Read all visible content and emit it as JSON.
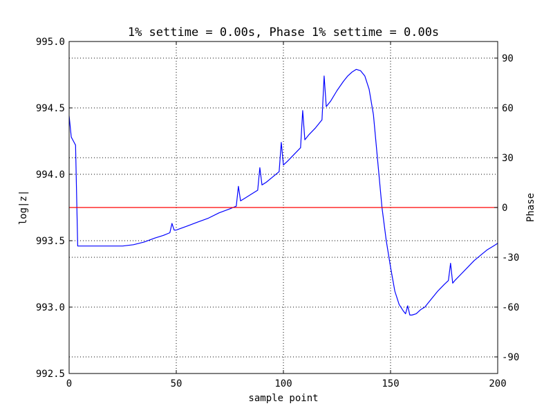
{
  "chart_data": {
    "type": "line",
    "title": "1% settime = 0.00s, Phase 1% settime = 0.00s",
    "xlabel": "sample point",
    "ylabel_left": "log|z|",
    "ylabel_right": "Phase",
    "xlim": [
      0,
      200
    ],
    "ylim_left": [
      992.5,
      995.0
    ],
    "ylim_right": [
      -100,
      100
    ],
    "x_ticks": [
      0,
      50,
      100,
      150,
      200
    ],
    "x_tick_labels": [
      "0",
      "50",
      "100",
      "150",
      "200"
    ],
    "left_ticks": [
      992.5,
      993.0,
      993.5,
      994.0,
      994.5,
      995.0
    ],
    "left_tick_labels": [
      "992.5",
      "993.0",
      "993.5",
      "994.0",
      "994.5",
      "995.0"
    ],
    "right_ticks": [
      -90,
      -60,
      -30,
      0,
      30,
      60,
      90
    ],
    "right_tick_labels": [
      "-90",
      "-60",
      "-30",
      "0",
      "30",
      "60",
      "90"
    ],
    "grid": true,
    "colors": {
      "magnitude": "#0000ff",
      "phase": "#ff0000",
      "grid": "#000000",
      "axes": "#000000"
    },
    "series": [
      {
        "axis": "left",
        "x": [
          0,
          1,
          2,
          3,
          4,
          6,
          10,
          15,
          20,
          25,
          30,
          35,
          40,
          44,
          47,
          48,
          49,
          50,
          55,
          60,
          65,
          70,
          75,
          78,
          79,
          80,
          82,
          85,
          88,
          89,
          90,
          92,
          95,
          98,
          99,
          100,
          102,
          105,
          108,
          109,
          110,
          112,
          115,
          118,
          119,
          120,
          122,
          125,
          128,
          130,
          132,
          134,
          136,
          138,
          140,
          142,
          144,
          146,
          148,
          150,
          152,
          154,
          156,
          157,
          158,
          159,
          160,
          162,
          164,
          166,
          168,
          170,
          172,
          175,
          177,
          178,
          179,
          180,
          183,
          186,
          189,
          192,
          195,
          198,
          200
        ],
        "values": [
          994.44,
          994.28,
          994.25,
          994.22,
          993.46,
          993.46,
          993.46,
          993.46,
          993.46,
          993.46,
          993.47,
          993.49,
          993.52,
          993.54,
          993.56,
          993.63,
          993.58,
          993.58,
          993.61,
          993.64,
          993.67,
          993.71,
          993.74,
          993.76,
          993.91,
          993.8,
          993.82,
          993.85,
          993.88,
          994.05,
          993.92,
          993.94,
          993.98,
          994.02,
          994.24,
          994.07,
          994.1,
          994.15,
          994.2,
          994.48,
          994.26,
          994.3,
          994.35,
          994.41,
          994.74,
          994.51,
          994.55,
          994.63,
          994.7,
          994.74,
          994.77,
          994.79,
          994.78,
          994.74,
          994.64,
          994.45,
          994.1,
          993.75,
          993.5,
          993.3,
          993.12,
          993.02,
          992.97,
          992.95,
          993.01,
          992.94,
          992.94,
          992.95,
          992.98,
          993.0,
          993.04,
          993.08,
          993.12,
          993.17,
          993.2,
          993.33,
          993.18,
          993.2,
          993.25,
          993.3,
          993.35,
          993.39,
          993.43,
          993.46,
          993.48
        ]
      },
      {
        "axis": "right",
        "x": [
          0,
          50,
          100,
          150,
          200
        ],
        "values": [
          0,
          0,
          0,
          0,
          0
        ]
      }
    ]
  }
}
